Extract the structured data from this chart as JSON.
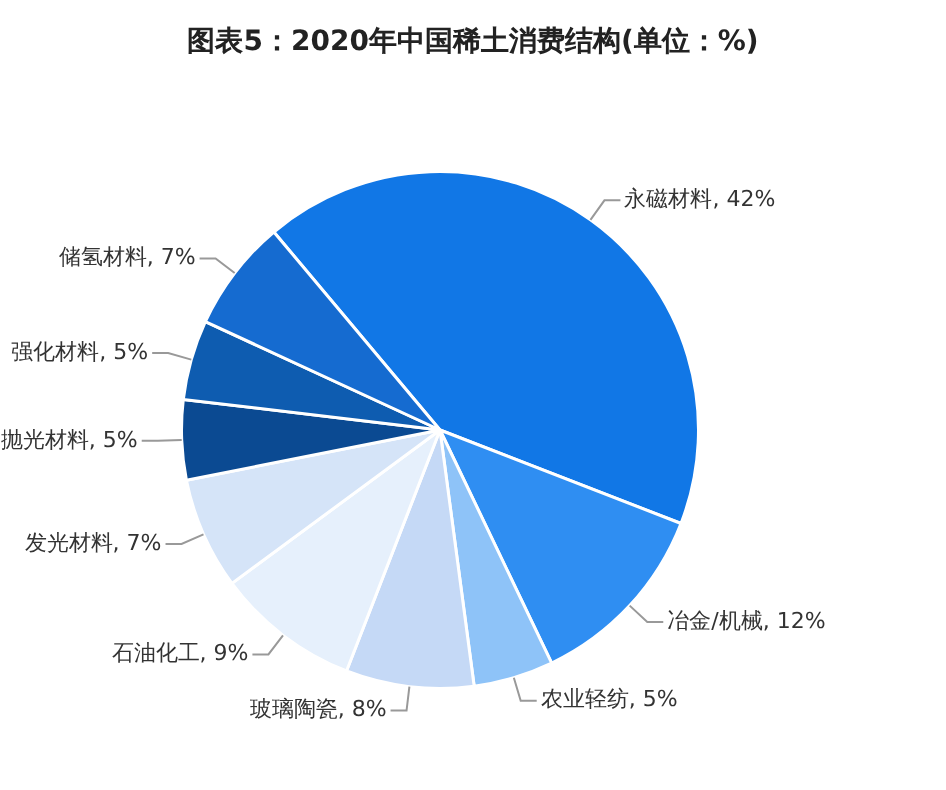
{
  "chart_data": {
    "type": "pie",
    "title": "图表5：2020年中国稀土消费结构(单位：%)",
    "categories": [
      "永磁材料",
      "冶金/机械",
      "农业轻纺",
      "玻璃陶瓷",
      "石油化工",
      "发光材料",
      "抛光材料",
      "强化材料",
      "储氢材料"
    ],
    "values": [
      42,
      12,
      5,
      8,
      9,
      7,
      5,
      5,
      7
    ],
    "value_labels": [
      "42%",
      "12%",
      "5%",
      "8%",
      "9%",
      "7%",
      "5%",
      "5%",
      "7%"
    ],
    "colors": [
      "#1177e6",
      "#2f8ef2",
      "#8ec3f8",
      "#c5d9f6",
      "#e6f0fc",
      "#d5e4f8",
      "#0b4a92",
      "#0e5cb0",
      "#156bd0"
    ],
    "legend": false
  }
}
